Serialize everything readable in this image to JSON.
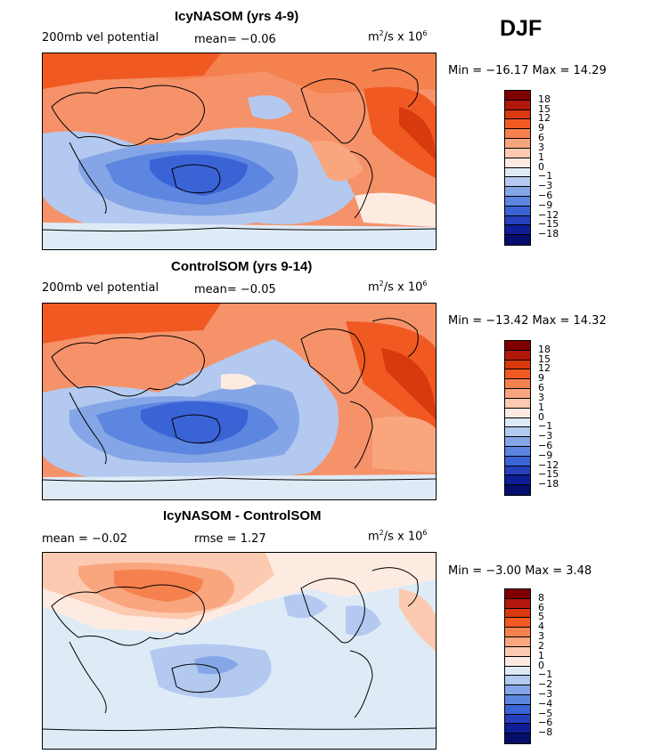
{
  "season": "DJF",
  "panels": [
    {
      "title": "IcyNASOM (yrs 4-9)",
      "left_label": "200mb vel potential",
      "mean_text": "mean=   −0.06",
      "units_pre": "m",
      "units_sup": "2",
      "units_mid": "/s x 10",
      "units_sup2": "6",
      "range_text": "Min = −16.17 Max =  14.29",
      "colorbar": {
        "labels": [
          "18",
          "15",
          "12",
          "9",
          "6",
          "3",
          "1",
          "0",
          "−1",
          "−3",
          "−6",
          "−9",
          "−12",
          "−15",
          "−18"
        ],
        "colors": [
          "#7f0000",
          "#b2170b",
          "#d8390d",
          "#f05a22",
          "#f5814f",
          "#f9a67f",
          "#fccab0",
          "#fdebe2",
          "#deebf7",
          "#b3c9ef",
          "#85a6e6",
          "#5c86e0",
          "#3a63d6",
          "#2440bc",
          "#0d1e96",
          "#050e6b"
        ]
      },
      "map_pattern": "a"
    },
    {
      "title": "ControlSOM (yrs 9-14)",
      "left_label": "200mb vel potential",
      "mean_text": "mean=   −0.05",
      "units_pre": "m",
      "units_sup": "2",
      "units_mid": "/s x 10",
      "units_sup2": "6",
      "range_text": "Min = −13.42 Max =  14.32",
      "colorbar": {
        "labels": [
          "18",
          "15",
          "12",
          "9",
          "6",
          "3",
          "1",
          "0",
          "−1",
          "−3",
          "−6",
          "−9",
          "−12",
          "−15",
          "−18"
        ],
        "colors": [
          "#7f0000",
          "#b2170b",
          "#d8390d",
          "#f05a22",
          "#f5814f",
          "#f9a67f",
          "#fccab0",
          "#fdebe2",
          "#deebf7",
          "#b3c9ef",
          "#85a6e6",
          "#5c86e0",
          "#3a63d6",
          "#2440bc",
          "#0d1e96",
          "#050e6b"
        ]
      },
      "map_pattern": "b"
    },
    {
      "title": "IcyNASOM - ControlSOM",
      "left_label": "mean =   −0.02",
      "mean_text": "rmse =    1.27",
      "units_pre": "m",
      "units_sup": "2",
      "units_mid": "/s x 10",
      "units_sup2": "6",
      "range_text": "Min =  −3.00 Max =   3.48",
      "colorbar": {
        "labels": [
          "8",
          "6",
          "5",
          "4",
          "3",
          "2",
          "1",
          "0",
          "−1",
          "−2",
          "−3",
          "−4",
          "−5",
          "−6",
          "−8"
        ],
        "colors": [
          "#7f0000",
          "#b2170b",
          "#d8390d",
          "#f05a22",
          "#f5814f",
          "#f9a67f",
          "#fccab0",
          "#fdebe2",
          "#deebf7",
          "#b3c9ef",
          "#85a6e6",
          "#5c86e0",
          "#3a63d6",
          "#2440bc",
          "#0d1e96",
          "#050e6b"
        ]
      },
      "map_pattern": "c"
    }
  ]
}
